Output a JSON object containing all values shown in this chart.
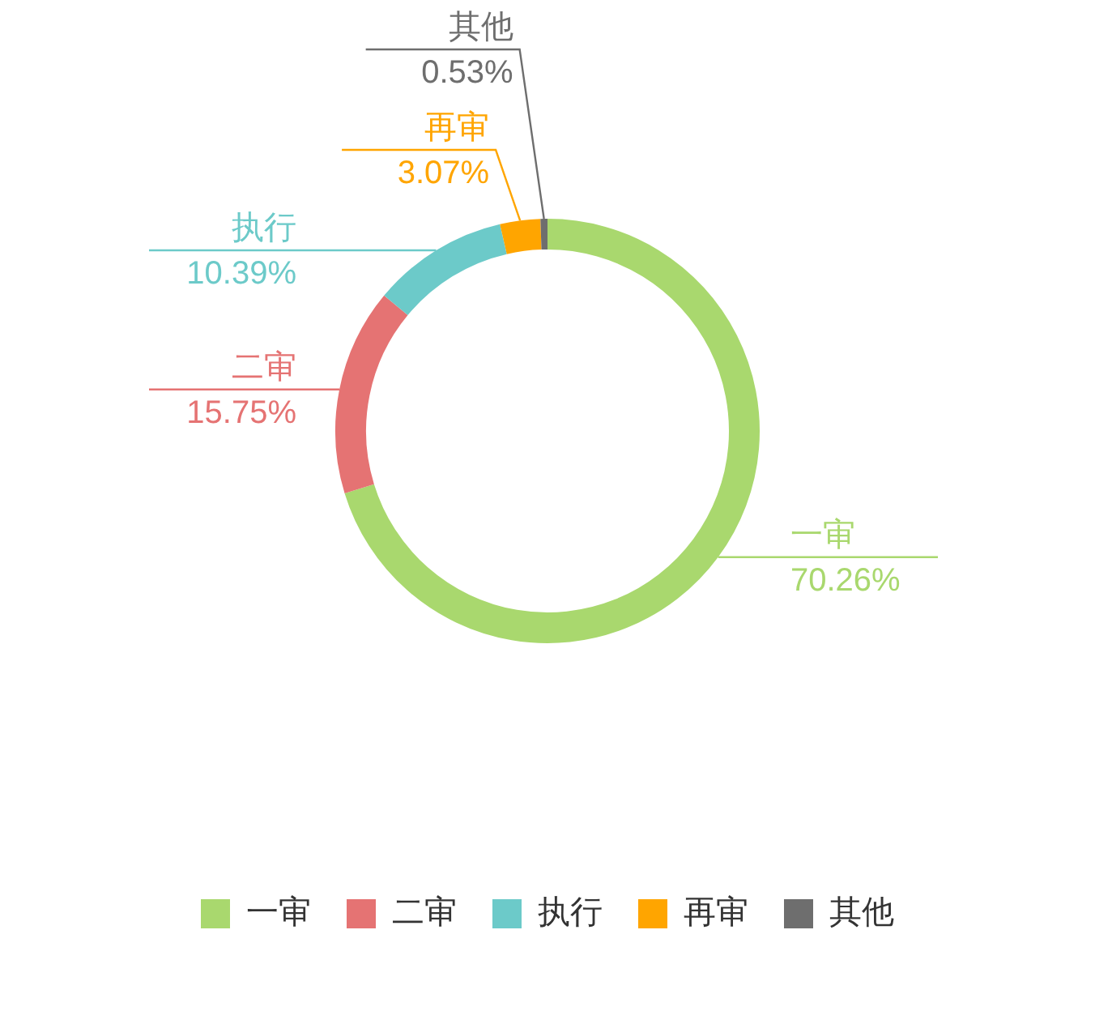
{
  "chart_data": {
    "type": "donut",
    "categories": [
      "一审",
      "二审",
      "执行",
      "再审",
      "其他"
    ],
    "values": [
      70.26,
      15.75,
      10.39,
      3.07,
      0.53
    ],
    "colors": [
      "#a9d86e",
      "#e57373",
      "#6ccac9",
      "#ffa500",
      "#6e6e6e"
    ],
    "value_labels": [
      "70.26%",
      "15.75%",
      "10.39%",
      "3.07%",
      "0.53%"
    ],
    "legend": "bottom"
  }
}
